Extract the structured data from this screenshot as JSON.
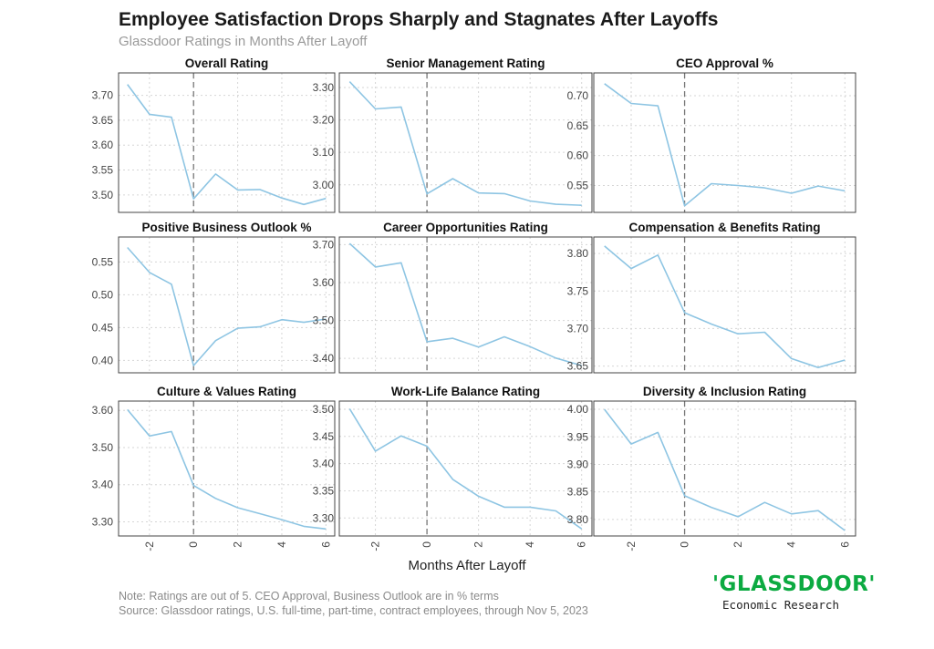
{
  "header": {
    "title": "Employee Satisfaction Drops Sharply and Stagnates After Layoffs",
    "subtitle": "Glassdoor Ratings in Months After Layoff"
  },
  "footer": {
    "note_line1": "Note: Ratings are out of 5. CEO Approval, Business Outlook are in % terms",
    "note_line2": "Source: Glassdoor ratings, U.S. full-time, part-time, contract employees, through Nov 5, 2023",
    "logo_text": "'GLASSDOOR'",
    "logo_sub": "Economic Research"
  },
  "colors": {
    "line": "#8ec5e3",
    "frame": "#444444",
    "grid": "#d6d6d6",
    "vline": "#777777"
  },
  "chart_data": {
    "type": "line",
    "xlabel": "Months After Layoff",
    "x": [
      -3,
      -2,
      -1,
      0,
      1,
      2,
      3,
      4,
      5,
      6
    ],
    "xticks": [
      -2,
      0,
      2,
      4,
      6
    ],
    "xlim": [
      -3.4,
      6.4
    ],
    "vline_x": 0,
    "grid": true,
    "panels": [
      {
        "title": "Overall Rating",
        "values": [
          3.722,
          3.662,
          3.656,
          3.492,
          3.542,
          3.51,
          3.511,
          3.494,
          3.481,
          3.493
        ],
        "ylim": [
          3.465,
          3.745
        ],
        "yticks": [
          3.5,
          3.55,
          3.6,
          3.65,
          3.7
        ],
        "tick_labels": [
          "3.50",
          "3.55",
          "3.60",
          "3.65",
          "3.70"
        ]
      },
      {
        "title": "Senior Management Rating",
        "values": [
          3.318,
          3.234,
          3.24,
          2.972,
          3.019,
          2.975,
          2.973,
          2.95,
          2.94,
          2.937
        ],
        "ylim": [
          2.915,
          3.345
        ],
        "yticks": [
          3.0,
          3.1,
          3.2,
          3.3
        ],
        "tick_labels": [
          "3.00",
          "3.10",
          "3.20",
          "3.30"
        ]
      },
      {
        "title": "CEO Approval %",
        "values": [
          0.72,
          0.687,
          0.683,
          0.516,
          0.553,
          0.55,
          0.546,
          0.537,
          0.549,
          0.541
        ],
        "ylim": [
          0.505,
          0.738
        ],
        "yticks": [
          0.55,
          0.6,
          0.65,
          0.7
        ],
        "tick_labels": [
          "0.55",
          "0.60",
          "0.65",
          "0.70"
        ]
      },
      {
        "title": "Positive Business Outlook %",
        "values": [
          0.572,
          0.534,
          0.516,
          0.392,
          0.43,
          0.449,
          0.451,
          0.462,
          0.458,
          0.463
        ],
        "ylim": [
          0.381,
          0.588
        ],
        "yticks": [
          0.4,
          0.45,
          0.5,
          0.55
        ],
        "tick_labels": [
          "0.40",
          "0.45",
          "0.50",
          "0.55"
        ]
      },
      {
        "title": "Career Opportunities Rating",
        "values": [
          3.703,
          3.641,
          3.652,
          3.444,
          3.453,
          3.43,
          3.457,
          3.431,
          3.401,
          3.381
        ],
        "ylim": [
          3.362,
          3.72
        ],
        "yticks": [
          3.4,
          3.5,
          3.6,
          3.7
        ],
        "tick_labels": [
          "3.40",
          "3.50",
          "3.60",
          "3.70"
        ]
      },
      {
        "title": "Compensation & Benefits Rating",
        "values": [
          3.81,
          3.78,
          3.798,
          3.721,
          3.706,
          3.693,
          3.695,
          3.66,
          3.648,
          3.658
        ],
        "ylim": [
          3.641,
          3.822
        ],
        "yticks": [
          3.65,
          3.7,
          3.75,
          3.8
        ],
        "tick_labels": [
          "3.65",
          "3.70",
          "3.75",
          "3.80"
        ]
      },
      {
        "title": "Culture & Values Rating",
        "values": [
          3.602,
          3.531,
          3.543,
          3.398,
          3.363,
          3.338,
          3.322,
          3.306,
          3.288,
          3.281
        ],
        "ylim": [
          3.262,
          3.625
        ],
        "yticks": [
          3.3,
          3.4,
          3.5,
          3.6
        ],
        "tick_labels": [
          "3.30",
          "3.40",
          "3.50",
          "3.60"
        ]
      },
      {
        "title": "Work-Life Balance Rating",
        "values": [
          3.501,
          3.423,
          3.451,
          3.432,
          3.371,
          3.34,
          3.32,
          3.32,
          3.313,
          3.28
        ],
        "ylim": [
          3.267,
          3.515
        ],
        "yticks": [
          3.3,
          3.35,
          3.4,
          3.45,
          3.5
        ],
        "tick_labels": [
          "3.30",
          "3.35",
          "3.40",
          "3.45",
          "3.50"
        ]
      },
      {
        "title": "Diversity & Inclusion Rating",
        "values": [
          4.0,
          3.937,
          3.958,
          3.843,
          3.822,
          3.805,
          3.831,
          3.81,
          3.816,
          3.78
        ],
        "ylim": [
          3.77,
          4.015
        ],
        "yticks": [
          3.8,
          3.85,
          3.9,
          3.95,
          4.0
        ],
        "tick_labels": [
          "3.80",
          "3.85",
          "3.90",
          "3.95",
          "4.00"
        ]
      }
    ]
  }
}
